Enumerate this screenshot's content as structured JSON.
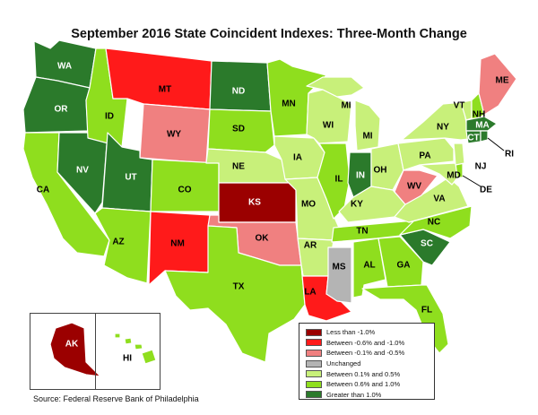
{
  "title": "September 2016 State Coincident Indexes: Three-Month Change",
  "source": "Source: Federal Reserve Bank of Philadelphia",
  "colors": {
    "lt_neg1": "#9b0000",
    "neg06_neg1": "#ff1a1a",
    "neg01_neg05": "#f08080",
    "unchanged": "#b4b4b4",
    "pos01_05": "#c8f07a",
    "pos06_1": "#8fde1e",
    "gt_1": "#2b7a2b"
  },
  "legend": [
    {
      "key": "lt_neg1",
      "label": "Less than -1.0%"
    },
    {
      "key": "neg06_neg1",
      "label": "Between -0.6% and -1.0%"
    },
    {
      "key": "neg01_neg05",
      "label": "Between -0.1% and -0.5%"
    },
    {
      "key": "unchanged",
      "label": "Unchanged"
    },
    {
      "key": "pos01_05",
      "label": "Between 0.1% and 0.5%"
    },
    {
      "key": "pos06_1",
      "label": "Between 0.6% and 1.0%"
    },
    {
      "key": "gt_1",
      "label": "Greater than 1.0%"
    }
  ],
  "states": {
    "WA": "gt_1",
    "OR": "gt_1",
    "CA": "pos06_1",
    "NV": "gt_1",
    "ID": "pos06_1",
    "MT": "neg06_neg1",
    "WY": "neg01_neg05",
    "UT": "gt_1",
    "AZ": "pos06_1",
    "CO": "pos06_1",
    "NM": "neg06_neg1",
    "ND": "gt_1",
    "SD": "pos06_1",
    "NE": "pos01_05",
    "KS": "lt_neg1",
    "OK": "neg01_neg05",
    "TX": "pos06_1",
    "MN": "pos06_1",
    "IA": "pos01_05",
    "MO": "pos01_05",
    "AR": "pos01_05",
    "LA": "neg06_neg1",
    "WI": "pos01_05",
    "IL": "pos06_1",
    "MS": "unchanged",
    "MI": "pos01_05",
    "IN": "gt_1",
    "KY": "pos01_05",
    "TN": "pos06_1",
    "AL": "pos06_1",
    "GA": "pos06_1",
    "FL": "pos06_1",
    "SC": "gt_1",
    "NC": "pos06_1",
    "OH": "pos01_05",
    "WV": "neg01_neg05",
    "VA": "pos01_05",
    "PA": "pos01_05",
    "NY": "pos01_05",
    "VT": "pos01_05",
    "NH": "pos06_1",
    "ME": "neg01_neg05",
    "MA": "gt_1",
    "CT": "gt_1",
    "RI": "gt_1",
    "NJ": "pos01_05",
    "DE": "pos06_1",
    "MD": "pos01_05",
    "AK": "lt_neg1",
    "HI": "pos06_1"
  },
  "labels": {
    "WA": "WA",
    "OR": "OR",
    "CA": "CA",
    "NV": "NV",
    "ID": "ID",
    "MT": "MT",
    "WY": "WY",
    "UT": "UT",
    "AZ": "AZ",
    "CO": "CO",
    "NM": "NM",
    "ND": "ND",
    "SD": "SD",
    "NE": "NE",
    "KS": "KS",
    "OK": "OK",
    "TX": "TX",
    "MN": "MN",
    "IA": "IA",
    "MO": "MO",
    "AR": "AR",
    "LA": "LA",
    "WI": "WI",
    "IL": "IL",
    "MS": "MS",
    "MI": "MI",
    "MI2": "MI",
    "IN": "IN",
    "KY": "KY",
    "TN": "TN",
    "AL": "AL",
    "GA": "GA",
    "FL": "FL",
    "SC": "SC",
    "NC": "NC",
    "OH": "OH",
    "WV": "WV",
    "VA": "VA",
    "PA": "PA",
    "NY": "NY",
    "VT": "VT",
    "NH": "NH",
    "ME": "ME",
    "MA": "MA",
    "CT": "CT",
    "RI": "RI",
    "NJ": "NJ",
    "DE": "DE",
    "MD": "MD",
    "AK": "AK",
    "HI": "HI"
  }
}
